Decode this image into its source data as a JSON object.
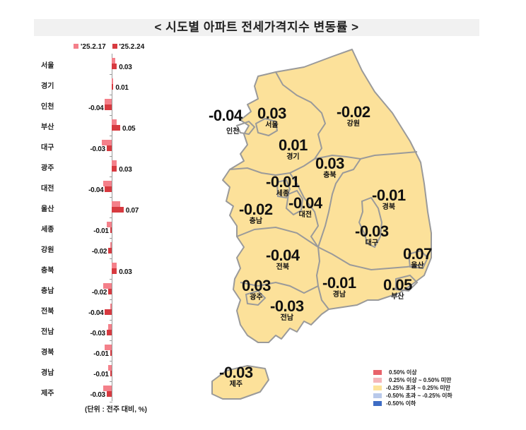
{
  "title": "< 시도별 아파트 전세가격지수 변동률 >",
  "bar_legend": [
    {
      "label": "'25.2.17",
      "color": "#f4808a"
    },
    {
      "label": "'25.2.24",
      "color": "#d73a40"
    }
  ],
  "unit_note": "(단위 : 전주 대비, %)",
  "map_legend": [
    {
      "label": "0.50% 이상",
      "color": "#e8636b"
    },
    {
      "label": "0.25% 이상 ~ 0.50% 미만",
      "color": "#f4b6ba"
    },
    {
      "label": "-0.25% 초과 ~ 0.25% 미만",
      "color": "#fde39a"
    },
    {
      "label": "-0.50% 초과 ~ -0.25% 이하",
      "color": "#b9c9ea"
    },
    {
      "label": "-0.50% 이하",
      "color": "#3d6cc4"
    }
  ],
  "map_regions": [
    {
      "name": "인천",
      "value": "-0.04"
    },
    {
      "name": "서울",
      "value": "0.03"
    },
    {
      "name": "경기",
      "value": "0.01"
    },
    {
      "name": "강원",
      "value": "-0.02"
    },
    {
      "name": "충북",
      "value": "0.03"
    },
    {
      "name": "세종",
      "value": "-0.01"
    },
    {
      "name": "대전",
      "value": "-0.04"
    },
    {
      "name": "충남",
      "value": "-0.02"
    },
    {
      "name": "경북",
      "value": "-0.01"
    },
    {
      "name": "대구",
      "value": "-0.03"
    },
    {
      "name": "울산",
      "value": "0.07"
    },
    {
      "name": "전북",
      "value": "-0.04"
    },
    {
      "name": "광주",
      "value": "0.03"
    },
    {
      "name": "전남",
      "value": "-0.03"
    },
    {
      "name": "경남",
      "value": "-0.01"
    },
    {
      "name": "부산",
      "value": "0.05"
    },
    {
      "name": "제주",
      "value": "-0.03"
    }
  ],
  "chart_data": [
    {
      "type": "bar",
      "orientation": "horizontal",
      "title": "시도별 아파트 전세가격지수 변동률",
      "xlabel": "",
      "ylabel": "",
      "unit": "전주 대비, %",
      "categories": [
        "서울",
        "경기",
        "인천",
        "부산",
        "대구",
        "광주",
        "대전",
        "울산",
        "세종",
        "강원",
        "충북",
        "충남",
        "전북",
        "전남",
        "경북",
        "경남",
        "제주"
      ],
      "series": [
        {
          "name": "'25.2.17",
          "color": "#f4808a",
          "values": [
            0.02,
            0.01,
            -0.04,
            0.03,
            -0.06,
            0.03,
            -0.05,
            0.05,
            -0.03,
            -0.01,
            0.03,
            -0.05,
            -0.01,
            -0.02,
            -0.04,
            -0.02,
            -0.05
          ]
        },
        {
          "name": "'25.2.24",
          "color": "#d73a40",
          "values": [
            0.03,
            0.01,
            -0.04,
            0.05,
            -0.03,
            0.03,
            -0.04,
            0.07,
            -0.01,
            -0.02,
            0.03,
            -0.02,
            -0.04,
            -0.03,
            -0.01,
            -0.01,
            -0.03
          ]
        }
      ],
      "data_labels": [
        "0.03",
        "0.01",
        "-0.04",
        "0.05",
        "-0.03",
        "0.03",
        "-0.04",
        "0.07",
        "-0.01",
        "-0.02",
        "0.03",
        "-0.02",
        "-0.04",
        "-0.03",
        "-0.01",
        "-0.01",
        "-0.03"
      ],
      "legend_position": "top",
      "grid": false
    },
    {
      "type": "choropleth",
      "title": "시도별 아파트 전세가격지수 변동률 (지도)",
      "regions": [
        "인천",
        "서울",
        "경기",
        "강원",
        "충북",
        "세종",
        "대전",
        "충남",
        "경북",
        "대구",
        "울산",
        "전북",
        "광주",
        "전남",
        "경남",
        "부산",
        "제주"
      ],
      "values": [
        -0.04,
        0.03,
        0.01,
        -0.02,
        0.03,
        -0.01,
        -0.04,
        -0.02,
        -0.01,
        -0.03,
        0.07,
        -0.04,
        0.03,
        -0.03,
        -0.01,
        0.05,
        -0.03
      ],
      "legend": [
        "0.50% 이상",
        "0.25% 이상 ~ 0.50% 미만",
        "-0.25% 초과 ~ 0.25% 미만",
        "-0.50% 초과 ~ -0.25% 이하",
        "-0.50% 이하"
      ],
      "all_regions_class": "-0.25% 초과 ~ 0.25% 미만"
    }
  ]
}
